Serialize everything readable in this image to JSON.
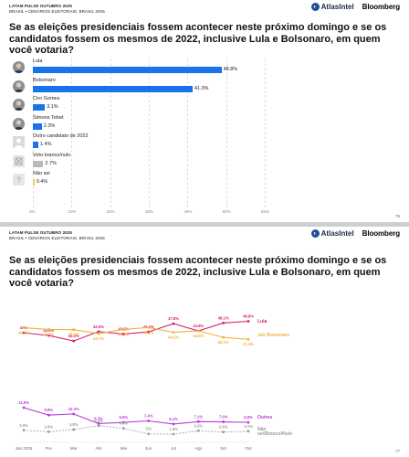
{
  "header": {
    "line1": "LATAM PULSE OUTUBRO 2025",
    "line2": "BRASIL • CENÁRIOS ELEITORAIS: BRASIL 2026",
    "atlas": "AtlasIntel",
    "bloomberg": "Bloomberg"
  },
  "slides": [
    {
      "page": "76",
      "question": "Se as eleições presidenciais fossem acontecer neste próximo domingo e se os candidatos fossem os mesmos de 2022, inclusive Lula e Bolsonaro, em quem você votaria?"
    },
    {
      "page": "77",
      "question": "Se as eleições presidenciais fossem acontecer neste próximo domingo e se os candidatos fossem os mesmos de 2022, inclusive Lula e Bolsonaro, em quem você votaria?"
    }
  ],
  "chart_data": [
    {
      "type": "bar",
      "orientation": "horizontal",
      "categories": [
        "Lula",
        "Bolsonaro",
        "Ciro Gomes",
        "Simone Tebet",
        "Outro candidato de 2022",
        "Voto branco/nulo",
        "Não sei"
      ],
      "values": [
        48.8,
        41.3,
        3.1,
        2.3,
        1.4,
        2.7,
        0.4
      ],
      "value_labels": [
        "48.8%",
        "41.3%",
        "3.1%",
        "2.3%",
        "1.4%",
        "2.7%",
        "0.4%"
      ],
      "bar_colors": [
        "#1a73e8",
        "#1a73e8",
        "#1a73e8",
        "#1a73e8",
        "#1a73e8",
        "#b9b9b9",
        "#f2c94c"
      ],
      "avatars": [
        "person-photo",
        "person-photo",
        "person-photo",
        "person-photo",
        "generic-person-icon",
        "blank-vote-icon",
        "question-mark-icon"
      ],
      "xlim": [
        0,
        60
      ],
      "xticks": [
        "0%",
        "10%",
        "20%",
        "30%",
        "40%",
        "50%",
        "60%"
      ],
      "grid": true
    },
    {
      "type": "line",
      "x": [
        "Jan 2025",
        "Fev",
        "Mar",
        "Abr",
        "Mai",
        "Jun",
        "Jul",
        "Ago",
        "Set",
        "Out"
      ],
      "ylim": [
        0,
        60
      ],
      "grid": false,
      "series": [
        {
          "name": "Lula",
          "color": "#d6246e",
          "values": [
            44.0,
            42.9,
            40.6,
            44.5,
            43.5,
            44.4,
            47.8,
            44.8,
            48.1,
            48.8
          ],
          "labels": [
            "44%",
            "42.9%",
            "40.6%",
            "44.5%",
            "43.5%",
            "44.4%",
            "47.8%",
            "44.8%",
            "48.1%",
            "48.8%"
          ]
        },
        {
          "name": "Jair Bolsonaro",
          "color": "#f0b23a",
          "values": [
            46.1,
            45.4,
            45.3,
            43.7,
            45.4,
            46.2,
            44.2,
            44.8,
            42.1,
            41.3
          ],
          "labels": [
            "46.1%",
            "45.4%",
            "45.3%",
            "43.7%",
            "45.4%",
            "46.2%",
            "44.2%",
            "44.8%",
            "42.1%",
            "41.3%"
          ]
        },
        {
          "name": "Outros",
          "color": "#b83cd6",
          "values": [
            12.9,
            9.8,
            10.3,
            6.3,
            6.8,
            7.4,
            6.1,
            7.1,
            7.0,
            6.8
          ],
          "labels": [
            "12.9%",
            "9.8%",
            "10.3%",
            "6.3%",
            "6.8%",
            "7.4%",
            "6.1%",
            "7.1%",
            "7.0%",
            "6.8%"
          ]
        },
        {
          "name": "Não sei/Branco/Nulo",
          "color": "#9a9a9a",
          "values": [
            3.5,
            2.9,
            3.8,
            5.4,
            4.3,
            2.0,
            1.9,
            3.3,
            2.8,
            3.1
          ],
          "labels": [
            "3.5%",
            "2.9%",
            "3.8%",
            "5.4%",
            "4.3%",
            "2%",
            "1.9%",
            "3.3%",
            "2.8%",
            "3.1%"
          ]
        }
      ]
    }
  ]
}
